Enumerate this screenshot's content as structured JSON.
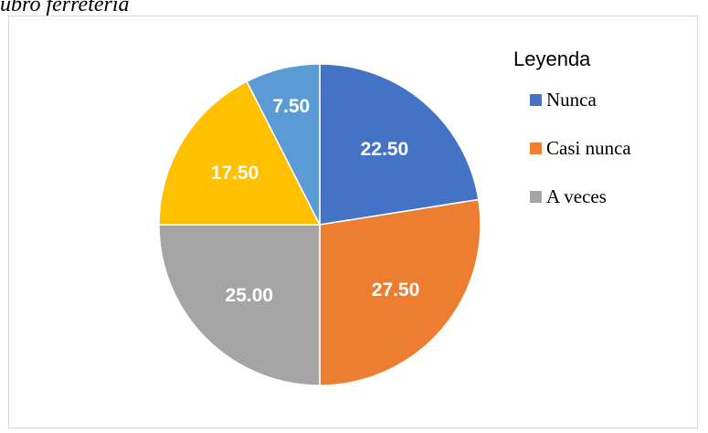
{
  "caption": "ubro ferreteria",
  "chart_data": {
    "type": "pie",
    "values": [
      22.5,
      27.5,
      25.0,
      17.5,
      7.5
    ],
    "labels": [
      "22.50",
      "27.50",
      "25.00",
      "17.50",
      "7.50"
    ],
    "colors": [
      "#4472C4",
      "#ED7D31",
      "#A5A5A5",
      "#FFC000",
      "#5B9BD5"
    ],
    "legend": {
      "title": "Leyenda",
      "placement": "right",
      "entries": [
        {
          "label": "Nunca",
          "color": "#4472C4"
        },
        {
          "label": "Casi nunca",
          "color": "#ED7D31"
        },
        {
          "label": "A veces",
          "color": "#A5A5A5"
        }
      ]
    }
  }
}
